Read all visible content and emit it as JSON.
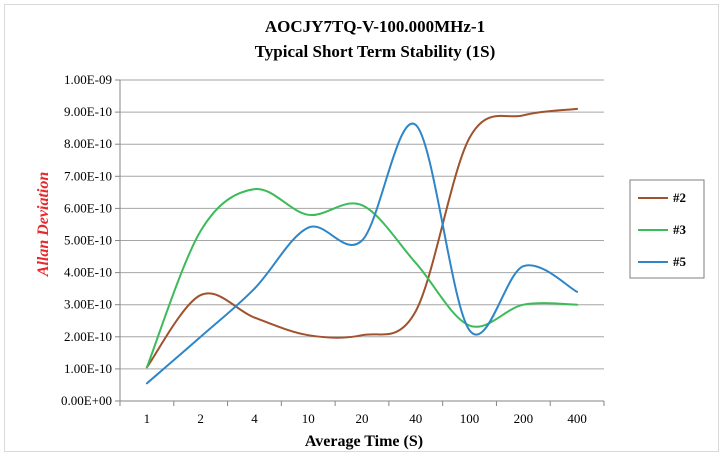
{
  "chart_data": {
    "type": "line",
    "title": "AOCJY7TQ-V-100.000MHz-1",
    "subtitle": "Typical Short Term Stability (1S)",
    "xlabel": "Average Time (S)",
    "ylabel": "Allan Deviation",
    "ylabel_color": "#e8272a",
    "categories": [
      "1",
      "2",
      "4",
      "10",
      "20",
      "40",
      "100",
      "200",
      "400"
    ],
    "ylim": [
      0,
      1e-09
    ],
    "y_ticks": [
      {
        "value": 0,
        "label": "0.00E+00"
      },
      {
        "value": 1e-10,
        "label": "1.00E-10"
      },
      {
        "value": 2e-10,
        "label": "2.00E-10"
      },
      {
        "value": 3e-10,
        "label": "3.00E-10"
      },
      {
        "value": 4e-10,
        "label": "4.00E-10"
      },
      {
        "value": 5e-10,
        "label": "5.00E-10"
      },
      {
        "value": 6e-10,
        "label": "6.00E-10"
      },
      {
        "value": 7e-10,
        "label": "7.00E-10"
      },
      {
        "value": 8e-10,
        "label": "8.00E-10"
      },
      {
        "value": 9e-10,
        "label": "9.00E-10"
      },
      {
        "value": 1e-09,
        "label": "1.00E-09"
      }
    ],
    "grid": true,
    "legend_position": "right",
    "series": [
      {
        "name": "#2",
        "color": "#a0522d",
        "values": [
          1.05e-10,
          3.3e-10,
          2.6e-10,
          2.05e-10,
          2.05e-10,
          2.8e-10,
          8.2e-10,
          8.9e-10,
          9.1e-10
        ]
      },
      {
        "name": "#3",
        "color": "#3dbb5a",
        "values": [
          1.05e-10,
          5.3e-10,
          6.6e-10,
          5.8e-10,
          6.1e-10,
          4.3e-10,
          2.35e-10,
          3e-10,
          3e-10
        ]
      },
      {
        "name": "#5",
        "color": "#2e86c8",
        "values": [
          5.5e-11,
          2e-10,
          3.5e-10,
          5.4e-10,
          5e-10,
          8.6e-10,
          2.2e-10,
          4.2e-10,
          3.4e-10
        ]
      }
    ]
  }
}
